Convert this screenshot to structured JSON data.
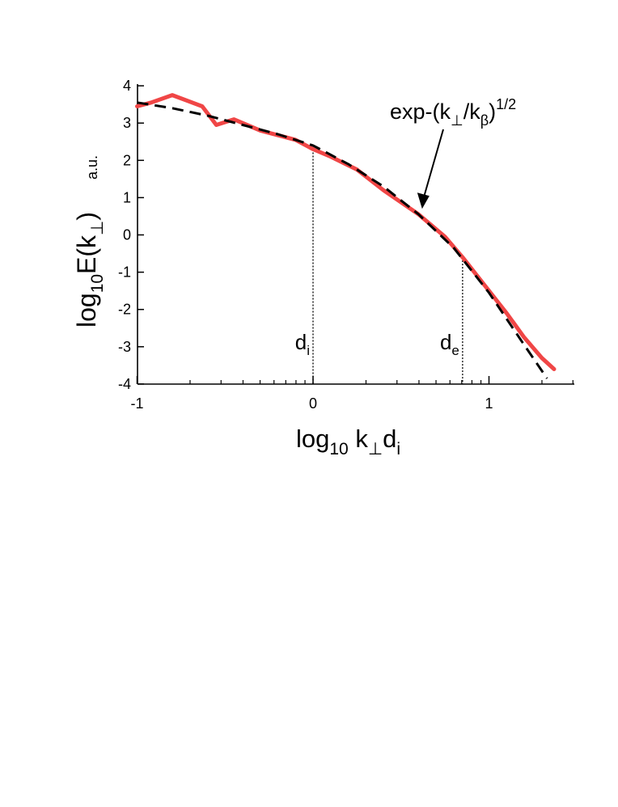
{
  "chart_data": {
    "type": "line",
    "xlim": [
      -1,
      1.5
    ],
    "ylim": [
      -4,
      4
    ],
    "x_ticks": [
      "-1",
      "0",
      "1"
    ],
    "y_ticks": [
      "-4",
      "-3",
      "-2",
      "-1",
      "0",
      "1",
      "2",
      "3",
      "4"
    ],
    "ylabel": {
      "pre": "log",
      "sub1": "10",
      "mid": "E(k",
      "sub2": "⊥",
      "post": ")"
    },
    "yunit": "a.u.",
    "xlabel": {
      "pre": "log",
      "sub1": "10",
      "mid": " k",
      "sub2": "⊥",
      "mid2": "d",
      "sub3": "i"
    },
    "series": [
      {
        "color": "#f04646",
        "style": "solid",
        "x": [
          -1.0,
          -0.92,
          -0.8,
          -0.63,
          -0.55,
          -0.45,
          -0.3,
          -0.1,
          0.0,
          0.1,
          0.25,
          0.4,
          0.6,
          0.75,
          0.85,
          0.95,
          1.1,
          1.2,
          1.3,
          1.37
        ],
        "y": [
          3.45,
          3.55,
          3.75,
          3.45,
          2.95,
          3.1,
          2.8,
          2.55,
          2.3,
          2.1,
          1.75,
          1.2,
          0.55,
          -0.05,
          -0.6,
          -1.2,
          -2.1,
          -2.75,
          -3.3,
          -3.6
        ]
      },
      {
        "color": "#000000",
        "style": "dashed",
        "x": [
          -1.0,
          -0.8,
          -0.6,
          -0.4,
          -0.2,
          0.0,
          0.2,
          0.4,
          0.6,
          0.8,
          1.0,
          1.2,
          1.33
        ],
        "y": [
          3.55,
          3.4,
          3.2,
          2.95,
          2.7,
          2.4,
          1.9,
          1.3,
          0.55,
          -0.35,
          -1.55,
          -2.95,
          -3.85
        ]
      }
    ],
    "vlines": [
      {
        "x": 0.0,
        "y_top": 2.3,
        "label": "d",
        "sub": "i"
      },
      {
        "x": 0.85,
        "y_top": -0.6,
        "label": "d",
        "sub": "e"
      }
    ],
    "annotation": {
      "text_pre": "exp-(k",
      "sub1": "⊥",
      "mid": "/k",
      "sub2": "β",
      "post": ")",
      "sup": "1/2",
      "arrow_to": [
        0.62,
        0.7
      ]
    }
  }
}
